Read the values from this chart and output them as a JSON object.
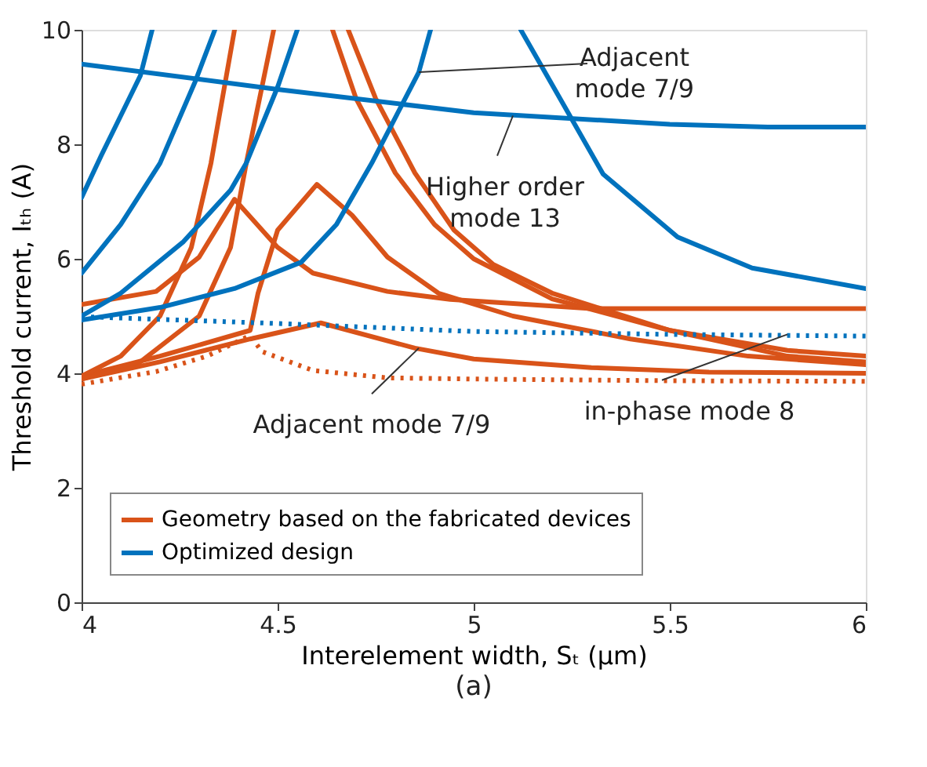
{
  "chart_data": {
    "type": "line",
    "title": "(a)",
    "xlabel": "Interelement width, Sₜ (μm)",
    "ylabel": "Threshold current, Iₜₕ (A)",
    "xlim": [
      4,
      6
    ],
    "ylim": [
      0,
      10
    ],
    "xticks": [
      4,
      4.5,
      5,
      5.5,
      6
    ],
    "yticks": [
      0,
      2,
      4,
      6,
      8,
      10
    ],
    "grid": false,
    "legend": "bottom left",
    "line_style": "solid",
    "marker": "none",
    "series": [
      {
        "name": "Geometry based on the fabricated devices",
        "color": "#d95319",
        "x": [
          4,
          4.19,
          4.3,
          4.39,
          4.5,
          4.59,
          4.78,
          4.94,
          5.3,
          6
        ],
        "values": [
          5.2,
          5.43,
          6.03,
          7.04,
          6.2,
          5.75,
          5.43,
          5.29,
          5.13,
          5.13
        ]
      },
      {
        "color": "#d95319",
        "x": [
          4,
          4.2,
          4.43,
          4.45,
          4.5,
          4.6,
          4.69,
          4.78,
          4.91,
          5.1,
          5.4,
          5.7,
          6
        ],
        "values": [
          3.95,
          4.3,
          4.75,
          5.4,
          6.5,
          7.3,
          6.76,
          6.03,
          5.4,
          5.0,
          4.6,
          4.3,
          4.15
        ]
      },
      {
        "color": "#d95319",
        "x": [
          4,
          4.1,
          4.2,
          4.28,
          4.33,
          4.39
        ],
        "values": [
          3.95,
          4.3,
          5.0,
          6.2,
          7.67,
          10
        ]
      },
      {
        "color": "#d95319",
        "x": [
          4,
          4.15,
          4.3,
          4.38,
          4.42,
          4.49
        ],
        "values": [
          3.9,
          4.2,
          5.0,
          6.2,
          7.67,
          10
        ]
      },
      {
        "color": "#d95319",
        "x": [
          4.64,
          4.7,
          4.8,
          4.9,
          5.0,
          5.2,
          5.5,
          5.8,
          6
        ],
        "values": [
          10,
          8.8,
          7.5,
          6.6,
          6.0,
          5.3,
          4.75,
          4.4,
          4.3
        ]
      },
      {
        "color": "#d95319",
        "x": [
          4.68,
          4.75,
          4.85,
          4.95,
          5.05,
          5.2,
          5.5,
          5.8,
          6
        ],
        "values": [
          10,
          8.8,
          7.5,
          6.5,
          5.9,
          5.4,
          4.75,
          4.3,
          4.2
        ]
      },
      {
        "color": "#d95319",
        "x": [
          4,
          4.2,
          4.43,
          4.61,
          4.85,
          5.0,
          5.3,
          5.6,
          6
        ],
        "values": [
          3.9,
          4.2,
          4.6,
          4.88,
          4.44,
          4.25,
          4.1,
          4.02,
          4.0
        ]
      },
      {
        "color": "#d95319",
        "line_style": "dotted",
        "x": [
          4,
          4.19,
          4.32,
          4.43,
          4.46,
          4.59,
          4.78,
          5,
          5.5,
          6
        ],
        "values": [
          3.81,
          4.03,
          4.3,
          4.66,
          4.38,
          4.05,
          3.92,
          3.9,
          3.87,
          3.86
        ]
      },
      {
        "name": "Optimized design",
        "color": "#0072bd",
        "x": [
          4,
          4.5,
          5,
          5.5,
          5.75,
          6
        ],
        "values": [
          9.4,
          8.96,
          8.55,
          8.35,
          8.3,
          8.3
        ]
      },
      {
        "color": "#0072bd",
        "x": [
          4,
          4.05,
          4.1,
          4.15,
          4.18
        ],
        "values": [
          7.07,
          7.8,
          8.5,
          9.2,
          10
        ]
      },
      {
        "color": "#0072bd",
        "x": [
          4,
          4.1,
          4.2,
          4.29,
          4.34
        ],
        "values": [
          5.75,
          6.6,
          7.67,
          9.1,
          10
        ]
      },
      {
        "color": "#0072bd",
        "x": [
          4,
          4.1,
          4.26,
          4.38,
          4.42,
          4.5,
          4.55
        ],
        "values": [
          5.0,
          5.4,
          6.3,
          7.2,
          7.67,
          9.0,
          10
        ]
      },
      {
        "color": "#0072bd",
        "x": [
          4,
          4.2,
          4.39,
          4.56,
          4.65,
          4.74,
          4.86,
          4.89
        ],
        "values": [
          4.93,
          5.15,
          5.48,
          5.94,
          6.6,
          7.67,
          9.26,
          10
        ]
      },
      {
        "color": "#0072bd",
        "x": [
          5.12,
          5.23,
          5.33,
          5.52,
          5.71,
          6
        ],
        "values": [
          10,
          8.68,
          7.48,
          6.38,
          5.84,
          5.48
        ]
      },
      {
        "color": "#0072bd",
        "line_style": "dotted",
        "x": [
          4,
          4.25,
          4.5,
          4.75,
          5,
          5.5,
          6
        ],
        "values": [
          4.99,
          4.93,
          4.87,
          4.8,
          4.73,
          4.68,
          4.65
        ]
      }
    ],
    "annotations": [
      {
        "text": "Adjacent\nmode 7/9",
        "x": 4.86,
        "y": 9.26
      },
      {
        "text": "Higher order\nmode 13",
        "x": 5.1,
        "y": 8.5
      },
      {
        "text": "Adjacent mode 7/9",
        "x": 4.86,
        "y": 4.44
      },
      {
        "text": "in-phase mode 8",
        "x": 5.8,
        "y": 4.68
      }
    ]
  }
}
